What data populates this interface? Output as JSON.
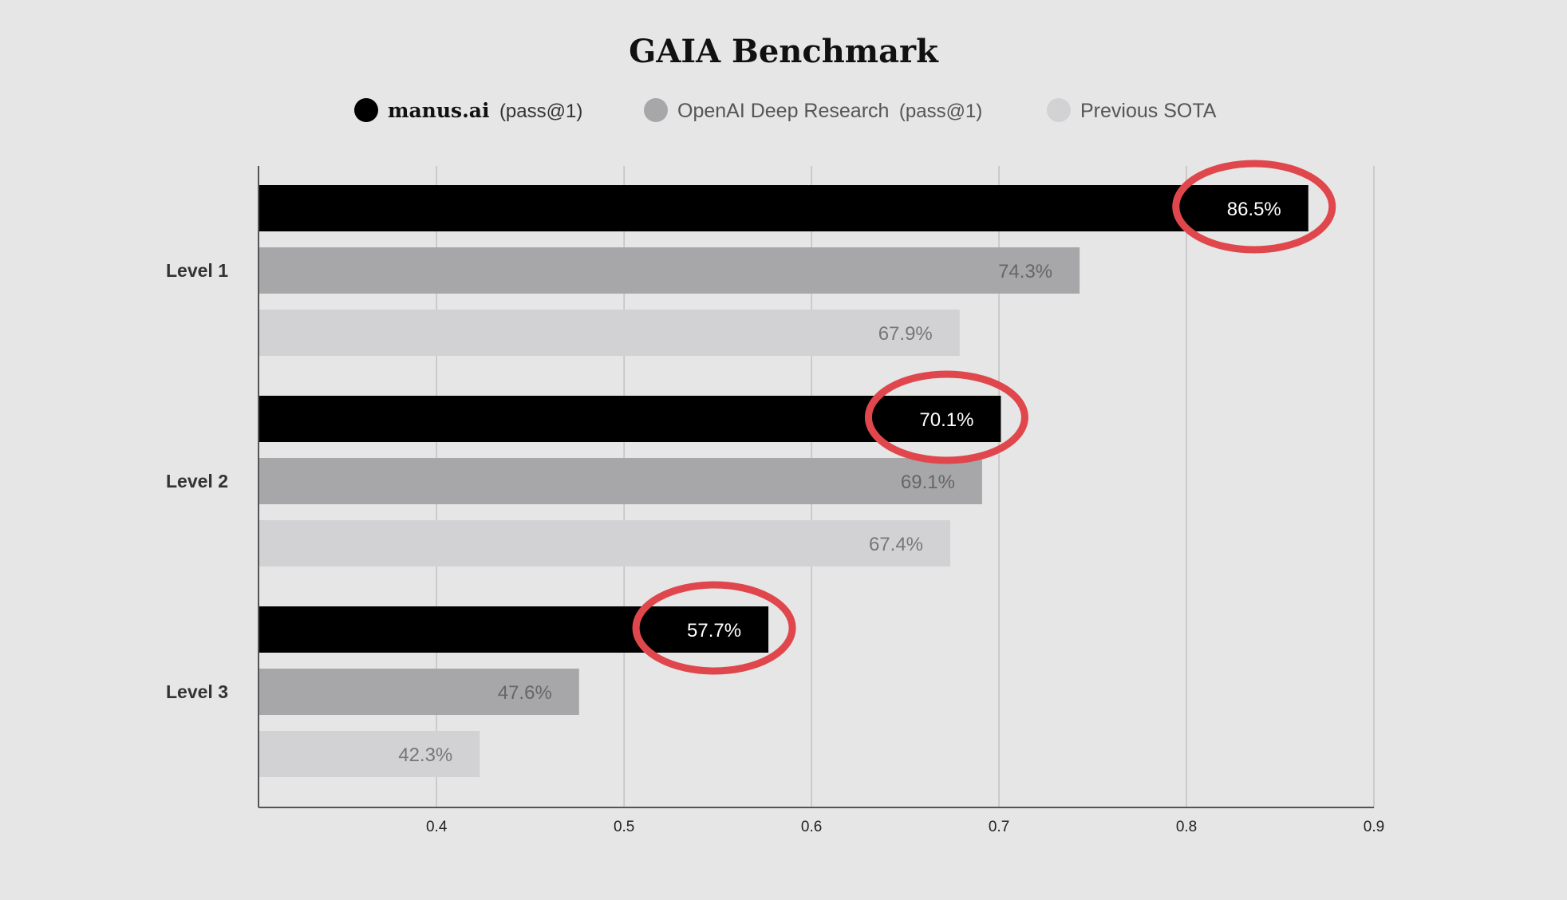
{
  "chart_data": {
    "type": "bar",
    "orientation": "horizontal",
    "title": "GAIA Benchmark",
    "xlabel": "",
    "ylabel": "",
    "categories": [
      "Level 1",
      "Level 2",
      "Level 3"
    ],
    "series": [
      {
        "name": "manus.ai",
        "name_suffix": "(pass@1)",
        "color": "#000000",
        "label_color": "#ffffff",
        "values": [
          0.865,
          0.701,
          0.577
        ],
        "labels": [
          "86.5%",
          "70.1%",
          "57.7%"
        ],
        "highlighted": true
      },
      {
        "name": "OpenAI Deep Research",
        "name_suffix": "(pass@1)",
        "color": "#a7a7a9",
        "label_color": "#666666",
        "values": [
          0.743,
          0.691,
          0.476
        ],
        "labels": [
          "74.3%",
          "69.1%",
          "47.6%"
        ]
      },
      {
        "name": "Previous SOTA",
        "name_suffix": "",
        "color": "#d2d2d4",
        "label_color": "#777777",
        "values": [
          0.679,
          0.674,
          0.423
        ],
        "labels": [
          "67.9%",
          "67.4%",
          "42.3%"
        ]
      }
    ],
    "xlim": [
      0.305,
      0.9
    ],
    "xticks": [
      0.4,
      0.5,
      0.6,
      0.7,
      0.8,
      0.9
    ],
    "xtick_labels": [
      "0.4",
      "0.5",
      "0.6",
      "0.7",
      "0.8",
      "0.9"
    ],
    "grid": "vertical",
    "legend_placement": "top-center",
    "highlight_color": "#e0474c"
  }
}
